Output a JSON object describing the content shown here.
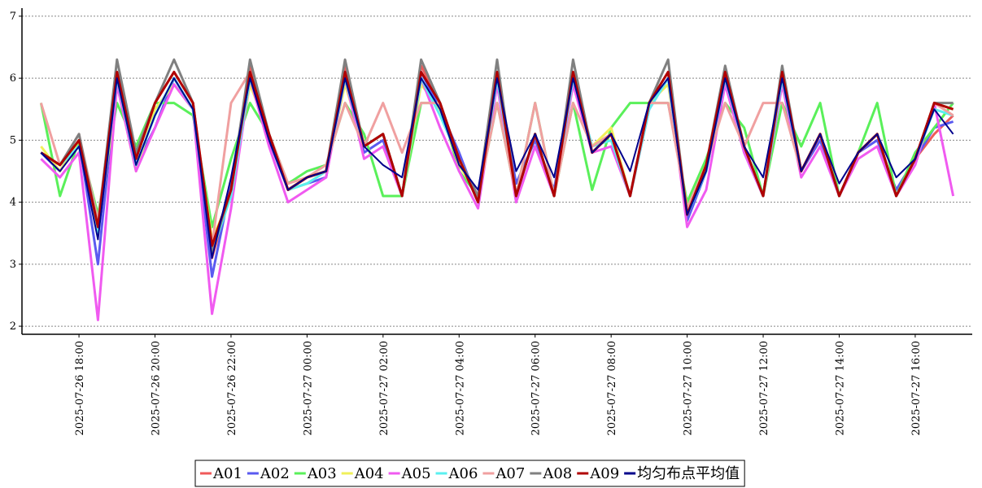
{
  "chart_data": {
    "type": "line",
    "x": [
      "2025-07-26 17:00",
      "2025-07-26 17:30",
      "2025-07-26 18:00",
      "2025-07-26 18:30",
      "2025-07-26 19:00",
      "2025-07-26 19:30",
      "2025-07-26 20:00",
      "2025-07-26 20:30",
      "2025-07-26 21:00",
      "2025-07-26 21:30",
      "2025-07-26 22:00",
      "2025-07-26 22:30",
      "2025-07-26 23:00",
      "2025-07-26 23:30",
      "2025-07-27 00:00",
      "2025-07-27 00:30",
      "2025-07-27 01:00",
      "2025-07-27 01:30",
      "2025-07-27 02:00",
      "2025-07-27 02:30",
      "2025-07-27 03:00",
      "2025-07-27 03:30",
      "2025-07-27 04:00",
      "2025-07-27 04:30",
      "2025-07-27 05:00",
      "2025-07-27 05:30",
      "2025-07-27 06:00",
      "2025-07-27 06:30",
      "2025-07-27 07:00",
      "2025-07-27 07:30",
      "2025-07-27 08:00",
      "2025-07-27 08:30",
      "2025-07-27 09:00",
      "2025-07-27 09:30",
      "2025-07-27 10:00",
      "2025-07-27 10:30",
      "2025-07-27 11:00",
      "2025-07-27 11:30",
      "2025-07-27 12:00",
      "2025-07-27 12:30",
      "2025-07-27 13:00",
      "2025-07-27 13:30",
      "2025-07-27 14:00",
      "2025-07-27 14:30",
      "2025-07-27 15:00",
      "2025-07-27 15:30",
      "2025-07-27 16:00",
      "2025-07-27 16:30",
      "2025-07-27 17:00"
    ],
    "series": [
      {
        "name": "A01",
        "color": "#f05a5a",
        "values": [
          4.8,
          4.6,
          4.9,
          3.6,
          6.1,
          4.7,
          5.6,
          6.1,
          5.6,
          3.1,
          4.2,
          6.2,
          5.1,
          4.2,
          4.4,
          4.5,
          6.2,
          4.9,
          5.1,
          4.1,
          6.2,
          5.6,
          4.7,
          4.1,
          6.1,
          4.1,
          5.1,
          4.1,
          6.1,
          4.8,
          5.1,
          4.1,
          5.6,
          6.1,
          3.8,
          4.6,
          6.1,
          4.9,
          4.1,
          6.1,
          4.5,
          5.1,
          4.1,
          4.8,
          5.1,
          4.1,
          4.7,
          5.1,
          5.4
        ]
      },
      {
        "name": "A02",
        "color": "#5a5af0",
        "values": [
          4.8,
          4.5,
          5.0,
          3.0,
          6.0,
          4.6,
          5.2,
          6.0,
          5.5,
          2.8,
          4.3,
          6.1,
          5.0,
          4.2,
          4.3,
          4.4,
          6.1,
          4.8,
          5.0,
          4.1,
          6.1,
          5.5,
          4.8,
          4.0,
          6.0,
          4.3,
          5.0,
          4.2,
          6.0,
          4.9,
          5.1,
          4.1,
          5.5,
          6.0,
          3.7,
          4.5,
          6.0,
          4.8,
          4.1,
          6.0,
          4.5,
          5.0,
          4.1,
          4.8,
          5.0,
          4.2,
          4.7,
          5.2,
          5.3
        ]
      },
      {
        "name": "A03",
        "color": "#5af05a",
        "values": [
          5.6,
          4.1,
          5.0,
          3.8,
          5.6,
          4.9,
          5.6,
          5.6,
          5.4,
          3.6,
          4.7,
          5.6,
          5.1,
          4.3,
          4.5,
          4.6,
          5.6,
          5.1,
          4.1,
          4.1,
          5.6,
          5.6,
          4.5,
          4.1,
          5.6,
          4.1,
          5.6,
          4.1,
          5.6,
          4.2,
          5.2,
          5.6,
          5.6,
          5.6,
          4.0,
          4.7,
          5.6,
          5.2,
          4.1,
          5.6,
          4.9,
          5.6,
          4.1,
          4.8,
          5.6,
          4.1,
          4.8,
          5.2,
          5.6
        ]
      },
      {
        "name": "A04",
        "color": "#f0f05a",
        "values": [
          4.9,
          4.5,
          5.0,
          3.5,
          5.9,
          4.5,
          5.5,
          5.9,
          5.5,
          3.4,
          4.1,
          5.9,
          5.1,
          4.2,
          4.3,
          4.5,
          5.9,
          4.9,
          5.1,
          4.1,
          5.9,
          5.5,
          4.6,
          4.1,
          5.9,
          4.1,
          5.1,
          4.1,
          5.9,
          4.9,
          5.2,
          4.1,
          5.6,
          5.9,
          3.9,
          4.6,
          5.9,
          4.9,
          4.1,
          5.9,
          4.5,
          5.1,
          4.1,
          4.8,
          5.1,
          4.1,
          4.7,
          5.6,
          5.5
        ]
      },
      {
        "name": "A05",
        "color": "#f05af0",
        "values": [
          4.7,
          4.4,
          4.8,
          2.1,
          5.9,
          4.5,
          5.2,
          5.9,
          5.5,
          2.2,
          3.9,
          6.0,
          4.9,
          4.0,
          4.2,
          4.4,
          6.0,
          4.7,
          4.9,
          4.1,
          6.0,
          5.2,
          4.5,
          3.9,
          5.9,
          4.0,
          4.9,
          4.1,
          5.9,
          4.8,
          4.9,
          4.1,
          5.5,
          6.0,
          3.6,
          4.2,
          5.9,
          4.8,
          4.1,
          5.9,
          4.4,
          4.9,
          4.1,
          4.7,
          4.9,
          4.1,
          4.6,
          5.6,
          4.1
        ]
      },
      {
        "name": "A06",
        "color": "#5af0f0",
        "values": [
          4.8,
          4.6,
          4.9,
          3.5,
          6.0,
          4.6,
          5.4,
          6.0,
          5.5,
          3.2,
          4.1,
          6.0,
          5.1,
          4.2,
          4.3,
          4.5,
          6.0,
          4.9,
          5.1,
          4.1,
          6.0,
          5.4,
          4.7,
          4.0,
          6.0,
          4.1,
          5.1,
          4.1,
          6.0,
          4.9,
          5.0,
          4.1,
          5.5,
          6.0,
          3.8,
          4.5,
          6.0,
          4.9,
          4.1,
          6.0,
          4.5,
          5.1,
          4.1,
          4.8,
          5.1,
          4.1,
          4.7,
          5.5,
          5.4
        ]
      },
      {
        "name": "A07",
        "color": "#f0a0a0",
        "values": [
          5.6,
          4.6,
          5.1,
          3.7,
          6.1,
          4.8,
          5.6,
          6.1,
          5.6,
          3.3,
          5.6,
          6.1,
          5.1,
          4.3,
          4.4,
          4.6,
          5.6,
          4.9,
          5.6,
          4.8,
          5.6,
          5.6,
          4.7,
          4.1,
          5.6,
          4.1,
          5.6,
          4.1,
          5.6,
          4.9,
          5.1,
          4.1,
          5.6,
          5.6,
          3.9,
          4.6,
          5.6,
          4.9,
          5.6,
          5.6,
          4.5,
          5.1,
          4.1,
          4.8,
          5.1,
          4.1,
          4.7,
          5.6,
          5.4
        ]
      },
      {
        "name": "A08",
        "color": "#808080",
        "values": [
          4.8,
          4.6,
          5.1,
          3.6,
          6.3,
          4.8,
          5.6,
          6.3,
          5.6,
          3.2,
          4.2,
          6.3,
          5.1,
          4.2,
          4.4,
          4.5,
          6.3,
          4.9,
          5.1,
          4.1,
          6.3,
          5.6,
          4.7,
          4.1,
          6.3,
          4.1,
          5.1,
          4.1,
          6.3,
          4.8,
          5.1,
          4.1,
          5.6,
          6.3,
          3.8,
          4.6,
          6.2,
          4.9,
          4.1,
          6.2,
          4.5,
          5.1,
          4.1,
          4.8,
          5.1,
          4.1,
          4.7,
          5.6,
          5.6
        ]
      },
      {
        "name": "A09",
        "color": "#b00000",
        "values": [
          4.8,
          4.6,
          5.0,
          3.6,
          6.1,
          4.7,
          5.6,
          6.1,
          5.6,
          3.3,
          4.2,
          6.1,
          5.1,
          4.2,
          4.4,
          4.5,
          6.1,
          4.9,
          5.1,
          4.1,
          6.1,
          5.6,
          4.7,
          4.0,
          6.1,
          4.1,
          5.1,
          4.1,
          6.1,
          4.8,
          5.1,
          4.1,
          5.6,
          6.1,
          3.8,
          4.6,
          6.1,
          4.9,
          4.1,
          6.1,
          4.5,
          5.1,
          4.1,
          4.8,
          5.1,
          4.1,
          4.7,
          5.6,
          5.5
        ]
      },
      {
        "name": "均匀布点平均值",
        "color": "#00008b",
        "values": [
          4.8,
          4.5,
          4.9,
          3.4,
          6.0,
          4.6,
          5.4,
          6.0,
          5.5,
          3.1,
          4.4,
          6.0,
          5.0,
          4.2,
          4.4,
          4.5,
          6.0,
          4.9,
          4.6,
          4.4,
          6.0,
          5.5,
          4.6,
          4.2,
          6.0,
          4.5,
          5.1,
          4.4,
          6.0,
          4.8,
          5.1,
          4.5,
          5.6,
          6.0,
          3.8,
          4.5,
          6.0,
          4.9,
          4.4,
          6.0,
          4.5,
          5.1,
          4.3,
          4.8,
          5.1,
          4.4,
          4.7,
          5.5,
          5.1
        ]
      }
    ],
    "xlim": [
      "2025-07-26 16:30",
      "2025-07-27 17:30"
    ],
    "xticks": [
      "2025-07-26 18:00",
      "2025-07-26 20:00",
      "2025-07-26 22:00",
      "2025-07-27 00:00",
      "2025-07-27 02:00",
      "2025-07-27 04:00",
      "2025-07-27 06:00",
      "2025-07-27 08:00",
      "2025-07-27 10:00",
      "2025-07-27 12:00",
      "2025-07-27 14:00",
      "2025-07-27 16:00"
    ],
    "ylim": [
      1.87,
      7.13
    ],
    "yticks": [
      2,
      3,
      4,
      5,
      6,
      7
    ],
    "grid": true,
    "legend": "bottom"
  }
}
